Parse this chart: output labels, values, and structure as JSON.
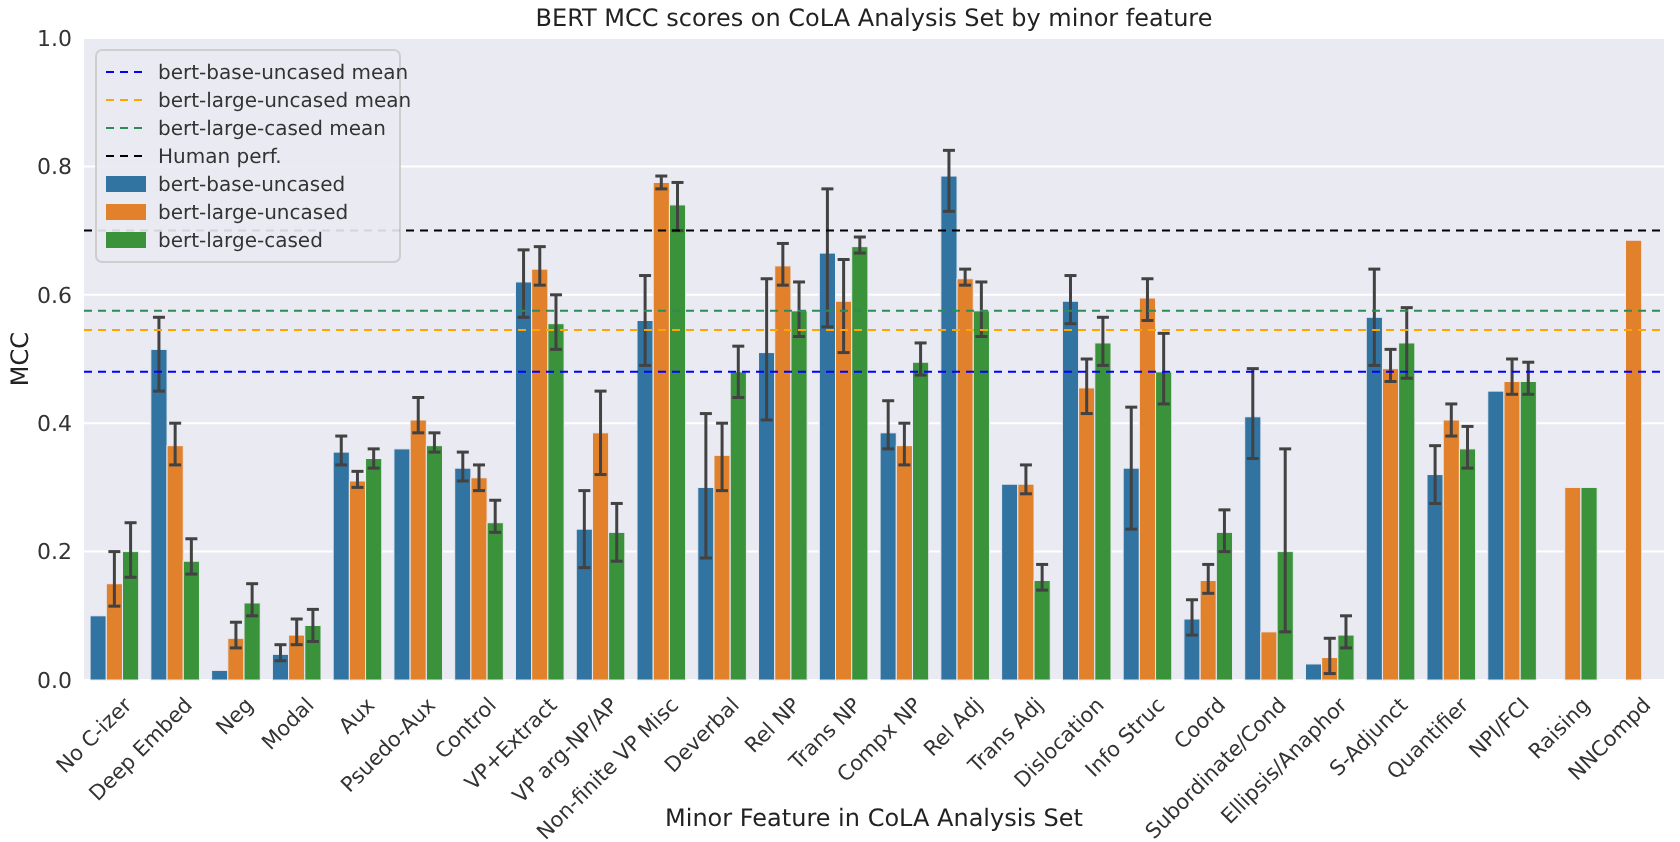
{
  "chart_data": {
    "type": "bar",
    "title": "BERT MCC scores on CoLA Analysis Set by minor feature",
    "xlabel": "Minor Feature in CoLA Analysis Set",
    "ylabel": "MCC",
    "categories": [
      "No C-izer",
      "Deep Embed",
      "Neg",
      "Modal",
      "Aux",
      "Psuedo-Aux",
      "Control",
      "VP+Extract",
      "VP arg-NP/AP",
      "Non-finite VP Misc",
      "Deverbal",
      "Rel NP",
      "Trans NP",
      "Compx NP",
      "Rel Adj",
      "Trans Adj",
      "Dislocation",
      "Info Struc",
      "Coord",
      "Subordinate/Cond",
      "Ellipsis/Anaphor",
      "S-Adjunct",
      "Quantifier",
      "NPI/FCI",
      "Raising",
      "NNCompd"
    ],
    "series": [
      {
        "name": "bert-base-uncased",
        "color": "#3274a1",
        "values": [
          0.1,
          0.515,
          0.015,
          0.04,
          0.355,
          0.36,
          0.33,
          0.62,
          0.235,
          0.56,
          0.3,
          0.51,
          0.665,
          0.385,
          0.785,
          0.305,
          0.59,
          0.33,
          0.095,
          0.41,
          0.025,
          0.565,
          0.32,
          0.45,
          null,
          null
        ],
        "errors": [
          null,
          [
            0.45,
            0.565
          ],
          null,
          [
            0.03,
            0.055
          ],
          [
            0.335,
            0.38
          ],
          null,
          [
            0.31,
            0.355
          ],
          [
            0.565,
            0.67
          ],
          [
            0.175,
            0.295
          ],
          [
            0.49,
            0.63
          ],
          [
            0.19,
            0.415
          ],
          [
            0.405,
            0.625
          ],
          [
            0.55,
            0.765
          ],
          [
            0.36,
            0.435
          ],
          [
            0.73,
            0.825
          ],
          null,
          [
            0.555,
            0.63
          ],
          [
            0.235,
            0.425
          ],
          [
            0.07,
            0.125
          ],
          [
            0.345,
            0.485
          ],
          null,
          [
            0.49,
            0.64
          ],
          [
            0.275,
            0.365
          ],
          null,
          null,
          null
        ]
      },
      {
        "name": "bert-large-uncased",
        "color": "#e1812c",
        "values": [
          0.15,
          0.365,
          0.065,
          0.07,
          0.31,
          0.405,
          0.315,
          0.64,
          0.385,
          0.775,
          0.35,
          0.645,
          0.59,
          0.365,
          0.625,
          0.305,
          0.455,
          0.595,
          0.155,
          0.075,
          0.035,
          0.485,
          0.405,
          0.465,
          0.3,
          0.685
        ],
        "errors": [
          [
            0.115,
            0.2
          ],
          [
            0.335,
            0.4
          ],
          [
            0.05,
            0.09
          ],
          [
            0.055,
            0.095
          ],
          [
            0.3,
            0.325
          ],
          [
            0.385,
            0.44
          ],
          [
            0.295,
            0.335
          ],
          [
            0.615,
            0.675
          ],
          [
            0.32,
            0.45
          ],
          [
            0.765,
            0.785
          ],
          [
            0.295,
            0.4
          ],
          [
            0.615,
            0.68
          ],
          [
            0.51,
            0.655
          ],
          [
            0.335,
            0.4
          ],
          [
            0.615,
            0.64
          ],
          [
            0.29,
            0.335
          ],
          [
            0.415,
            0.5
          ],
          [
            0.56,
            0.625
          ],
          [
            0.135,
            0.18
          ],
          null,
          [
            0.01,
            0.065
          ],
          [
            0.465,
            0.515
          ],
          [
            0.38,
            0.43
          ],
          [
            0.445,
            0.5
          ],
          null,
          null
        ]
      },
      {
        "name": "bert-large-cased",
        "color": "#3a923a",
        "values": [
          0.2,
          0.185,
          0.12,
          0.085,
          0.345,
          0.365,
          0.245,
          0.555,
          0.23,
          0.74,
          0.48,
          0.575,
          0.675,
          0.495,
          0.575,
          0.155,
          0.525,
          0.48,
          0.23,
          0.2,
          0.07,
          0.525,
          0.36,
          0.465,
          0.3,
          null
        ],
        "errors": [
          [
            0.16,
            0.245
          ],
          [
            0.165,
            0.22
          ],
          [
            0.1,
            0.15
          ],
          [
            0.06,
            0.11
          ],
          [
            0.33,
            0.36
          ],
          [
            0.355,
            0.385
          ],
          [
            0.23,
            0.28
          ],
          [
            0.515,
            0.6
          ],
          [
            0.185,
            0.275
          ],
          [
            0.7,
            0.775
          ],
          [
            0.44,
            0.52
          ],
          [
            0.535,
            0.62
          ],
          [
            0.665,
            0.69
          ],
          [
            0.475,
            0.525
          ],
          [
            0.535,
            0.62
          ],
          [
            0.14,
            0.18
          ],
          [
            0.49,
            0.565
          ],
          [
            0.43,
            0.54
          ],
          [
            0.2,
            0.265
          ],
          [
            0.075,
            0.36
          ],
          [
            0.05,
            0.1
          ],
          [
            0.47,
            0.58
          ],
          [
            0.33,
            0.395
          ],
          [
            0.445,
            0.495
          ],
          null,
          null
        ]
      }
    ],
    "ref_lines": [
      {
        "axis": "y",
        "value": 0.48,
        "label": "bert-base-uncased mean",
        "color": "#0000ff",
        "line_style": "dashed"
      },
      {
        "axis": "y",
        "value": 0.545,
        "label": "bert-large-uncased mean",
        "color": "#ffa500",
        "line_style": "dashed"
      },
      {
        "axis": "y",
        "value": 0.575,
        "label": "bert-large-cased mean",
        "color": "#2e8b57",
        "line_style": "dashed"
      },
      {
        "axis": "y",
        "value": 0.7,
        "label": "Human perf.",
        "color": "#000000",
        "line_style": "dashed"
      }
    ],
    "ylim": [
      0,
      1
    ],
    "yticks": [
      {
        "value": 0,
        "label": "0.0"
      },
      0.2,
      0.4,
      0.6,
      0.8,
      {
        "value": 1,
        "label": "1.0"
      }
    ],
    "grid": "y",
    "legend": "top left"
  }
}
